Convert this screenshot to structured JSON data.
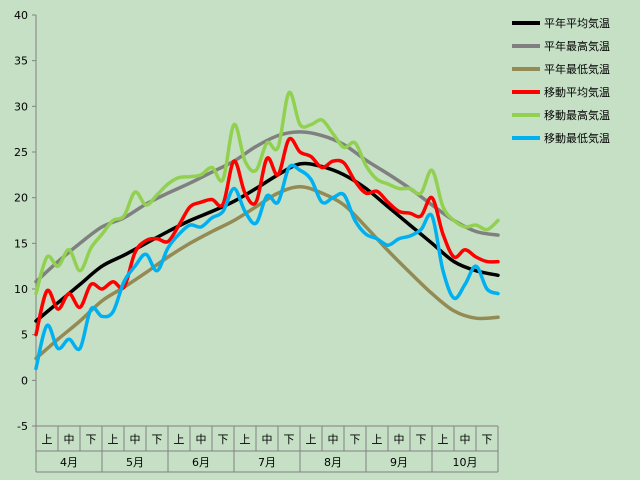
{
  "chart_data": {
    "type": "line",
    "title": "",
    "xlabel": "",
    "ylabel": "",
    "ylim": [
      -5,
      40
    ],
    "yticks": [
      -5,
      0,
      5,
      10,
      15,
      20,
      25,
      30,
      35,
      40
    ],
    "grid": false,
    "x_range": [
      0,
      21
    ],
    "x_subcategories": [
      "上",
      "中",
      "下",
      "上",
      "中",
      "下",
      "上",
      "中",
      "下",
      "上",
      "中",
      "下",
      "上",
      "中",
      "下",
      "上",
      "中",
      "下",
      "上",
      "中",
      "下"
    ],
    "x_months": [
      "4月",
      "5月",
      "6月",
      "7月",
      "8月",
      "9月",
      "10月"
    ],
    "legend_position": "right",
    "colors": {
      "background": "#c6e0c6",
      "black": "#000000",
      "gray": "#808080",
      "olive": "#948a54",
      "red": "#ff0000",
      "green": "#92d050",
      "blue": "#00b0f0"
    },
    "series": [
      {
        "name": "平年平均気温",
        "color": "#000000",
        "x": [
          0,
          1,
          2,
          3,
          4,
          5,
          6,
          7,
          8,
          9,
          10,
          11,
          12,
          13,
          14,
          15,
          16,
          17,
          18,
          19,
          20,
          21
        ],
        "values": [
          6.5,
          8.5,
          10.5,
          12.5,
          13.7,
          15.0,
          16.3,
          17.5,
          18.5,
          19.6,
          21.0,
          22.5,
          23.7,
          23.4,
          22.5,
          21.0,
          19.0,
          17.0,
          15.0,
          13.0,
          12.0,
          11.5
        ]
      },
      {
        "name": "平年最高気温",
        "color": "#808080",
        "x": [
          0,
          1,
          2,
          3,
          4,
          5,
          6,
          7,
          8,
          9,
          10,
          11,
          12,
          13,
          14,
          15,
          16,
          17,
          18,
          19,
          20,
          21
        ],
        "values": [
          10.8,
          13.0,
          15.0,
          16.8,
          17.8,
          19.3,
          20.5,
          21.6,
          22.8,
          24.0,
          25.6,
          26.8,
          27.2,
          26.8,
          25.8,
          24.1,
          22.6,
          21.0,
          19.2,
          17.5,
          16.3,
          15.9
        ]
      },
      {
        "name": "平年最低気温",
        "color": "#948a54",
        "x": [
          0,
          1,
          2,
          3,
          4,
          5,
          6,
          7,
          8,
          9,
          10,
          11,
          12,
          13,
          14,
          15,
          16,
          17,
          18,
          19,
          20,
          21
        ],
        "values": [
          2.4,
          4.5,
          6.5,
          8.7,
          10.2,
          11.8,
          13.5,
          15.0,
          16.3,
          17.5,
          19.0,
          20.5,
          21.2,
          20.5,
          19.2,
          16.8,
          14.2,
          11.8,
          9.5,
          7.6,
          6.8,
          6.9
        ]
      },
      {
        "name": "移動平均気温",
        "color": "#ff0000",
        "x": [
          0,
          0.5,
          1,
          1.5,
          2,
          2.5,
          3,
          3.5,
          4,
          4.5,
          5,
          5.5,
          6,
          6.5,
          7,
          7.5,
          8,
          8.5,
          9,
          9.5,
          10,
          10.5,
          11,
          11.5,
          12,
          12.5,
          13,
          13.5,
          14,
          14.5,
          15,
          15.5,
          16,
          16.5,
          17,
          17.5,
          18,
          18.5,
          19,
          19.5,
          20,
          20.5,
          21
        ],
        "values": [
          5.0,
          9.8,
          7.8,
          9.5,
          8.0,
          10.5,
          10.0,
          10.8,
          10.2,
          14.0,
          15.3,
          15.5,
          15.2,
          17.0,
          19.0,
          19.5,
          19.8,
          19.3,
          24.0,
          20.5,
          19.5,
          24.3,
          22.5,
          26.4,
          25.0,
          24.5,
          23.3,
          24.0,
          23.8,
          21.8,
          20.5,
          20.7,
          19.5,
          18.5,
          18.3,
          18.0,
          20.0,
          16.0,
          13.5,
          14.3,
          13.5,
          13.0,
          13.0
        ]
      },
      {
        "name": "移動最高気温",
        "color": "#92d050",
        "x": [
          0,
          0.5,
          1,
          1.5,
          2,
          2.5,
          3,
          3.5,
          4,
          4.5,
          5,
          5.5,
          6,
          6.5,
          7,
          7.5,
          8,
          8.5,
          9,
          9.5,
          10,
          10.5,
          11,
          11.5,
          12,
          12.5,
          13,
          13.5,
          14,
          14.5,
          15,
          15.5,
          16,
          16.5,
          17,
          17.5,
          18,
          18.5,
          19,
          19.5,
          20,
          20.5,
          21
        ],
        "values": [
          9.5,
          13.5,
          12.5,
          14.3,
          12.0,
          14.5,
          16.0,
          17.5,
          18.0,
          20.6,
          19.2,
          20.3,
          21.5,
          22.2,
          22.3,
          22.5,
          23.3,
          22.0,
          28.0,
          24.0,
          23.0,
          26.0,
          25.5,
          31.5,
          28.0,
          28.0,
          28.5,
          27.0,
          25.5,
          26.0,
          23.5,
          22.0,
          21.5,
          21.0,
          21.0,
          20.5,
          23.0,
          19.0,
          17.5,
          16.8,
          17.0,
          16.5,
          17.5
        ]
      },
      {
        "name": "移動最低気温",
        "color": "#00b0f0",
        "x": [
          0,
          0.5,
          1,
          1.5,
          2,
          2.5,
          3,
          3.5,
          4,
          4.5,
          5,
          5.5,
          6,
          6.5,
          7,
          7.5,
          8,
          8.5,
          9,
          9.5,
          10,
          10.5,
          11,
          11.5,
          12,
          12.5,
          13,
          13.5,
          14,
          14.5,
          15,
          15.5,
          16,
          16.5,
          17,
          17.5,
          18,
          18.5,
          19,
          19.5,
          20,
          20.5,
          21
        ],
        "values": [
          1.3,
          6.0,
          3.5,
          4.5,
          3.5,
          7.8,
          7.0,
          7.5,
          10.8,
          12.5,
          13.8,
          12.0,
          14.5,
          16.0,
          17.0,
          16.8,
          17.8,
          18.5,
          21.0,
          18.5,
          17.2,
          20.2,
          19.5,
          23.3,
          23.0,
          22.0,
          19.5,
          20.0,
          20.3,
          17.5,
          16.0,
          15.5,
          14.8,
          15.5,
          15.8,
          16.5,
          18.0,
          12.0,
          9.0,
          10.5,
          12.5,
          10.0,
          9.5
        ]
      }
    ]
  }
}
